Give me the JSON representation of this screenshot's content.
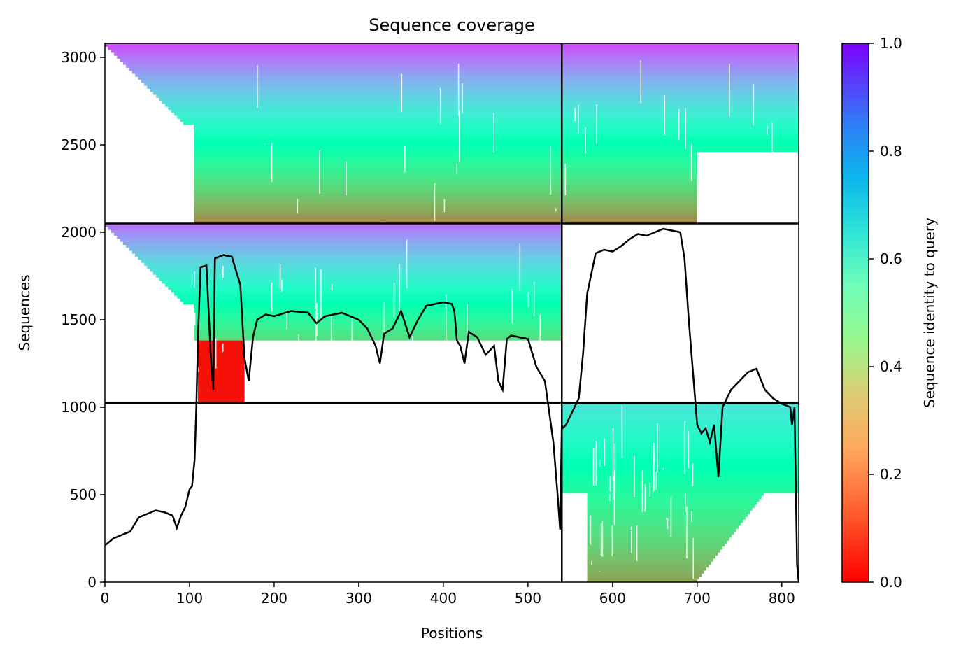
{
  "chart_data": {
    "type": "heatmap",
    "title": "Sequence coverage",
    "xlabel": "Positions",
    "ylabel": "Sequences",
    "xlim": [
      0,
      820
    ],
    "ylim": [
      0,
      3080
    ],
    "xticks": [
      0,
      100,
      200,
      300,
      400,
      500,
      600,
      700,
      800
    ],
    "yticks": [
      0,
      500,
      1000,
      1500,
      2000,
      2500,
      3000
    ],
    "colorbar": {
      "label": "Sequence identity to query",
      "range": [
        0,
        1
      ],
      "ticks": [
        "0.0",
        "0.2",
        "0.4",
        "0.6",
        "0.8",
        "1.0"
      ],
      "colormap": "rainbow_r"
    },
    "chain_boundaries_x": [
      540
    ],
    "block_boundaries_y": [
      1025,
      2050
    ],
    "blocks": [
      {
        "name": "chain1",
        "x_range": [
          0,
          540
        ],
        "y_range": [
          1025,
          2050
        ],
        "x_core": [
          105,
          540
        ],
        "identity_top": 0.85,
        "identity_bottom": 0.05
      },
      {
        "name": "chain2",
        "x_range": [
          540,
          820
        ],
        "y_range": [
          0,
          1025
        ],
        "x_core": [
          570,
          700
        ],
        "identity_top": 0.65,
        "identity_bottom": 0.22
      },
      {
        "name": "paired",
        "x_range": [
          0,
          820
        ],
        "y_range": [
          2050,
          3080
        ],
        "x_core": [
          105,
          820
        ],
        "identity_top": 0.9,
        "identity_bottom": 0.18
      }
    ],
    "coverage_line": {
      "x": [
        0,
        10,
        20,
        30,
        40,
        50,
        60,
        70,
        80,
        85,
        90,
        95,
        100,
        103,
        106,
        108,
        110,
        113,
        120,
        125,
        128,
        130,
        135,
        140,
        150,
        160,
        165,
        170,
        175,
        180,
        190,
        200,
        220,
        240,
        250,
        260,
        280,
        300,
        310,
        320,
        325,
        330,
        340,
        350,
        360,
        370,
        380,
        400,
        410,
        413,
        416,
        420,
        425,
        430,
        440,
        450,
        460,
        465,
        470,
        475,
        480,
        490,
        500,
        510,
        520,
        530,
        535,
        538,
        540,
        541,
        545,
        550,
        555,
        560,
        565,
        570,
        580,
        590,
        600,
        610,
        620,
        630,
        640,
        650,
        660,
        670,
        680,
        685,
        690,
        695,
        700,
        705,
        710,
        715,
        720,
        725,
        730,
        740,
        750,
        760,
        770,
        780,
        790,
        800,
        810,
        812,
        815,
        818,
        820
      ],
      "y": [
        210,
        250,
        270,
        290,
        370,
        390,
        410,
        400,
        380,
        310,
        380,
        430,
        530,
        550,
        700,
        1000,
        1400,
        1800,
        1810,
        1300,
        1100,
        1850,
        1860,
        1870,
        1860,
        1700,
        1280,
        1150,
        1400,
        1500,
        1530,
        1520,
        1550,
        1540,
        1480,
        1520,
        1540,
        1500,
        1450,
        1350,
        1250,
        1420,
        1450,
        1550,
        1400,
        1500,
        1580,
        1600,
        1590,
        1550,
        1380,
        1350,
        1250,
        1430,
        1400,
        1300,
        1350,
        1150,
        1100,
        1390,
        1410,
        1400,
        1390,
        1230,
        1150,
        800,
        500,
        300,
        900,
        880,
        900,
        950,
        1000,
        1050,
        1300,
        1650,
        1880,
        1900,
        1890,
        1920,
        1960,
        1990,
        1980,
        2000,
        2020,
        2010,
        2000,
        1850,
        1500,
        1200,
        900,
        850,
        880,
        800,
        900,
        600,
        1000,
        1100,
        1150,
        1200,
        1220,
        1100,
        1050,
        1020,
        1000,
        900,
        1000,
        100,
        0
      ]
    }
  }
}
